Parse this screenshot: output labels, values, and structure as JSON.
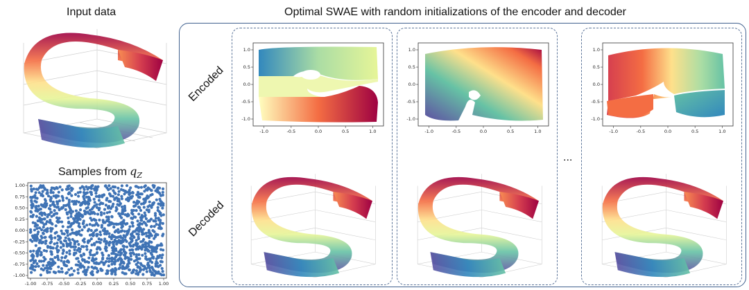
{
  "left": {
    "input_title": "Input data",
    "samples_title": "Samples from",
    "samples_title_symbol": "q",
    "samples_title_subscript": "Z"
  },
  "right": {
    "title": "Optimal SWAE with random initializations of the encoder and decoder",
    "encoded_label": "Encoded",
    "decoded_label": "Decoded",
    "ellipsis": "..."
  },
  "colors": {
    "frame": "#41618f",
    "samples": "#3f73b5",
    "colormap": "Spectral"
  },
  "chart_data": [
    {
      "id": "samples-q-z",
      "type": "scatter",
      "x_ticks": [
        "-1.00",
        "-0.75",
        "-0.50",
        "-0.25",
        "0.00",
        "0.25",
        "0.50",
        "0.75",
        "1.00"
      ],
      "y_ticks": [
        "1.00",
        "0.75",
        "0.50",
        "0.25",
        "0.00",
        "-0.25",
        "-0.50",
        "-0.75",
        "-1.00"
      ],
      "xlim": [
        -1,
        1
      ],
      "ylim": [
        -1,
        1
      ]
    },
    {
      "id": "encoded-1",
      "type": "scatter",
      "x_ticks": [
        "-1.0",
        "-0.5",
        "0.0",
        "0.5",
        "1.0"
      ],
      "y_ticks": [
        "1.0",
        "0.5",
        "0.0",
        "-0.5",
        "-1.0"
      ],
      "xlim": [
        -1.2,
        1.2
      ],
      "ylim": [
        -1.2,
        1.2
      ]
    },
    {
      "id": "encoded-2",
      "type": "scatter",
      "x_ticks": [
        "-1.0",
        "-0.5",
        "0.0",
        "0.5",
        "1.0"
      ],
      "y_ticks": [
        "1.0",
        "0.5",
        "0.0",
        "-0.5",
        "-1.0"
      ],
      "xlim": [
        -1.2,
        1.2
      ],
      "ylim": [
        -1.2,
        1.2
      ]
    },
    {
      "id": "encoded-3",
      "type": "scatter",
      "x_ticks": [
        "-1.0",
        "-0.5",
        "0.0",
        "0.5",
        "1.0"
      ],
      "y_ticks": [
        "1.0",
        "0.5",
        "0.0",
        "-0.5",
        "-1.0"
      ],
      "xlim": [
        -1.2,
        1.2
      ],
      "ylim": [
        -1.2,
        1.2
      ]
    }
  ]
}
